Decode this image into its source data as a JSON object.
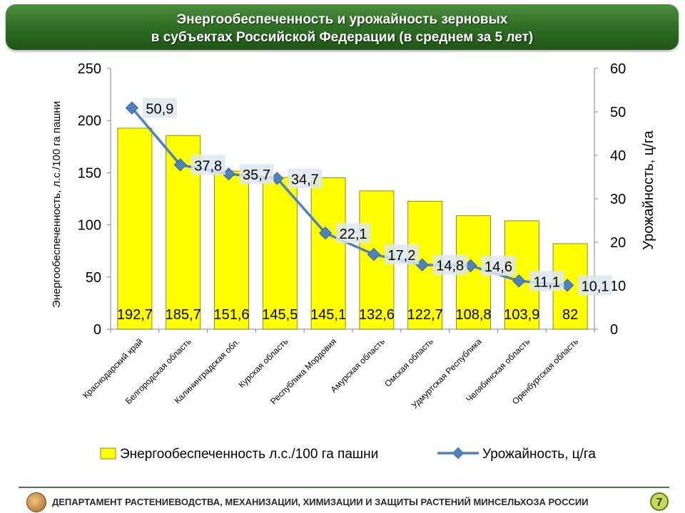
{
  "header": {
    "title_line1": "Энергообеспеченность и урожайность зерновых",
    "title_line2": "в субъектах Российской Федерации (в среднем за 5 лет)"
  },
  "chart_data": {
    "type": "bar+line",
    "categories": [
      "Краснодарский край",
      "Белгородская область",
      "Калининградская обл.",
      "Курская область",
      "Республика Мордовия",
      "Амурская область",
      "Омская область",
      "Удмуртская Республика",
      "Челябинская область",
      "Оренбургская область"
    ],
    "series": [
      {
        "name": "Энергообеспеченность л.с./100 га пашни",
        "type": "bar",
        "axis": "left",
        "color": "#ffff00",
        "values": [
          192.7,
          185.7,
          151.6,
          145.5,
          145.1,
          132.6,
          122.7,
          108.8,
          103.9,
          82
        ],
        "labels": [
          "192,7",
          "185,7",
          "151,6",
          "145,5",
          "145,1",
          "132,6",
          "122,7",
          "108,8",
          "103,9",
          "82"
        ]
      },
      {
        "name": "Урожайность, ц/га",
        "type": "line",
        "axis": "right",
        "color": "#4f81bd",
        "values": [
          50.9,
          37.8,
          35.7,
          34.7,
          22.1,
          17.2,
          14.8,
          14.6,
          11.1,
          10.1
        ],
        "labels": [
          "50,9",
          "37,8",
          "35,7",
          "34,7",
          "22,1",
          "17,2",
          "14,8",
          "14,6",
          "11,1",
          "10,1"
        ]
      }
    ],
    "y_left": {
      "label": "Энергообеспеченность, л.с./100 га пашни",
      "min": 0,
      "max": 250,
      "ticks": [
        "0",
        "50",
        "100",
        "150",
        "200",
        "250"
      ]
    },
    "y_right": {
      "label": "Урожайность, ц/га",
      "min": 0,
      "max": 60,
      "ticks": [
        "0",
        "10",
        "20",
        "30",
        "40",
        "50",
        "60"
      ]
    },
    "grid": false,
    "legend": "bottom"
  },
  "footer": {
    "text": "ДЕПАРТАМЕНТ РАСТЕНИЕВОДСТВА,  МЕХАНИЗАЦИИ, ХИМИЗАЦИИ И ЗАЩИТЫ РАСТЕНИЙ МИНСЕЛЬХОЗА РОССИИ",
    "page_number": "7"
  }
}
